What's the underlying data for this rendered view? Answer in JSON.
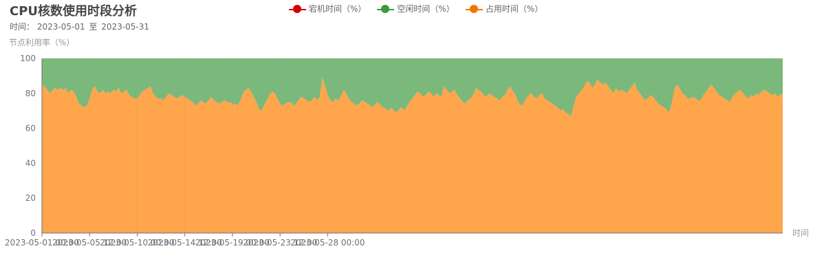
{
  "header": {
    "title": "CPU核数使用时段分析",
    "time_label": "时间：",
    "start": "2023-05-01",
    "to": "至",
    "end": "2023-05-31"
  },
  "legend": [
    {
      "name": "宕机时间（%）",
      "color": "#d40000"
    },
    {
      "name": "空闲时间（%）",
      "color": "#3c9a3c"
    },
    {
      "name": "占用时间（%）",
      "color": "#f07800"
    }
  ],
  "chart_data": {
    "type": "area",
    "stacked": true,
    "ylabel": "节点利用率（%）",
    "xlabel": "时间",
    "ylim": [
      0,
      100
    ],
    "yticks": [
      0,
      20,
      40,
      60,
      80,
      100
    ],
    "xtick_labels": [
      "2023-05-01 00:00",
      "2023-05-05 12:00",
      "2023-05-10 00:00",
      "2023-05-14 12:00",
      "2023-05-19 00:00",
      "2023-05-23 12:00",
      "2023-05-28 00:00"
    ],
    "x_start": "2023-05-01 00:00",
    "x_step_hours": 6,
    "series_colors": {
      "down": "#d40000",
      "idle": "#7bb87b",
      "used": "#ffa54c"
    },
    "series": [
      {
        "name": "占用时间（%）",
        "values": [
          85,
          84,
          82,
          80,
          82,
          83,
          82,
          83,
          82,
          83,
          80,
          82,
          81,
          78,
          74,
          73,
          72,
          73,
          77,
          82,
          84,
          81,
          80,
          82,
          80,
          81,
          80,
          82,
          81,
          83,
          80,
          81,
          82,
          79,
          78,
          77,
          77,
          79,
          81,
          82,
          83,
          84,
          80,
          78,
          77,
          77,
          76,
          78,
          80,
          79,
          78,
          77,
          78,
          79,
          78,
          77,
          76,
          75,
          73,
          74,
          76,
          75,
          74,
          76,
          78,
          76,
          75,
          74,
          75,
          76,
          75,
          75,
          74,
          74,
          73,
          76,
          80,
          82,
          83,
          81,
          78,
          75,
          71,
          70,
          73,
          76,
          79,
          81,
          80,
          77,
          74,
          73,
          74,
          75,
          75,
          73,
          74,
          76,
          78,
          77,
          76,
          75,
          76,
          78,
          76,
          78,
          89,
          84,
          79,
          76,
          75,
          77,
          76,
          78,
          82,
          80,
          77,
          75,
          74,
          73,
          74,
          76,
          75,
          74,
          73,
          72,
          74,
          75,
          73,
          72,
          71,
          70,
          72,
          70,
          69,
          71,
          72,
          70,
          73,
          75,
          77,
          79,
          81,
          80,
          78,
          79,
          81,
          80,
          78,
          80,
          79,
          78,
          84,
          82,
          80,
          81,
          82,
          79,
          77,
          75,
          74,
          76,
          77,
          79,
          83,
          82,
          81,
          79,
          78,
          80,
          79,
          78,
          77,
          76,
          78,
          79,
          82,
          84,
          81,
          79,
          75,
          73,
          74,
          77,
          79,
          80,
          78,
          77,
          79,
          80,
          77,
          76,
          75,
          74,
          73,
          72,
          70,
          71,
          69,
          68,
          67,
          73,
          78,
          80,
          82,
          84,
          87,
          86,
          83,
          85,
          88,
          86,
          85,
          86,
          84,
          82,
          80,
          83,
          81,
          82,
          81,
          80,
          82,
          84,
          86,
          82,
          80,
          78,
          76,
          77,
          79,
          78,
          76,
          74,
          73,
          72,
          71,
          69,
          74,
          82,
          85,
          83,
          80,
          79,
          77,
          77,
          78,
          77,
          76,
          76,
          79,
          81,
          83,
          85,
          83,
          81,
          79,
          78,
          77,
          76,
          75,
          78,
          80,
          81,
          82,
          80,
          78,
          77,
          79,
          78,
          80,
          79,
          81,
          82,
          81,
          80,
          79,
          80,
          78,
          79,
          80
        ]
      },
      {
        "name": "空闲时间（%）",
        "values": [
          15,
          16,
          18,
          20,
          18,
          17,
          18,
          17,
          18,
          17,
          20,
          18,
          19,
          22,
          26,
          27,
          28,
          27,
          23,
          18,
          16,
          19,
          20,
          18,
          20,
          19,
          20,
          18,
          19,
          17,
          20,
          19,
          18,
          21,
          22,
          23,
          23,
          21,
          19,
          18,
          17,
          16,
          20,
          22,
          23,
          23,
          24,
          22,
          20,
          21,
          22,
          23,
          22,
          21,
          22,
          23,
          24,
          25,
          27,
          26,
          24,
          25,
          26,
          24,
          22,
          24,
          25,
          26,
          25,
          24,
          25,
          25,
          26,
          26,
          27,
          24,
          20,
          18,
          17,
          19,
          22,
          25,
          29,
          30,
          27,
          24,
          21,
          19,
          20,
          23,
          26,
          27,
          26,
          25,
          25,
          27,
          26,
          24,
          22,
          23,
          24,
          25,
          24,
          22,
          24,
          22,
          11,
          16,
          21,
          24,
          25,
          23,
          24,
          22,
          18,
          20,
          23,
          25,
          26,
          27,
          26,
          24,
          25,
          26,
          27,
          28,
          26,
          25,
          27,
          28,
          29,
          30,
          28,
          30,
          31,
          29,
          28,
          30,
          27,
          25,
          23,
          21,
          19,
          20,
          22,
          21,
          19,
          20,
          22,
          20,
          21,
          22,
          16,
          18,
          20,
          19,
          18,
          21,
          23,
          25,
          26,
          24,
          23,
          21,
          17,
          18,
          19,
          21,
          22,
          20,
          21,
          22,
          23,
          24,
          22,
          21,
          18,
          16,
          19,
          21,
          25,
          27,
          26,
          23,
          21,
          20,
          22,
          23,
          21,
          20,
          23,
          24,
          25,
          26,
          27,
          28,
          30,
          29,
          31,
          32,
          33,
          27,
          22,
          20,
          18,
          16,
          13,
          14,
          17,
          15,
          12,
          14,
          15,
          14,
          16,
          18,
          20,
          17,
          19,
          18,
          19,
          20,
          18,
          16,
          14,
          18,
          20,
          22,
          24,
          23,
          21,
          22,
          24,
          26,
          27,
          28,
          29,
          31,
          26,
          18,
          15,
          17,
          20,
          21,
          23,
          23,
          22,
          23,
          24,
          24,
          21,
          19,
          17,
          15,
          17,
          19,
          21,
          22,
          23,
          24,
          25,
          22,
          20,
          19,
          18,
          20,
          22,
          23,
          21,
          22,
          20,
          21,
          19,
          18,
          19,
          20,
          21,
          20,
          22,
          21,
          20
        ]
      },
      {
        "name": "宕机时间（%）",
        "values": [
          0,
          0,
          0,
          0,
          0,
          0,
          0,
          0,
          0,
          0,
          0,
          0,
          0,
          0,
          0,
          0,
          0,
          0,
          0,
          0,
          0,
          0,
          0,
          0,
          0,
          0,
          0,
          0,
          0,
          0,
          0,
          0,
          0,
          0,
          0,
          0,
          0,
          0,
          0,
          0,
          0,
          0,
          0,
          0,
          0,
          0,
          0,
          0,
          0,
          0,
          0,
          0,
          0,
          0,
          0,
          0,
          0,
          0,
          0,
          0,
          0,
          0,
          0,
          0,
          0,
          0,
          0,
          0,
          0,
          0,
          0,
          0,
          0,
          0,
          0,
          0,
          0,
          0,
          0,
          0,
          0,
          0,
          0,
          0,
          0,
          0,
          0,
          0,
          0,
          0,
          0,
          0,
          0,
          0,
          0,
          0,
          0,
          0,
          0,
          0,
          0,
          0,
          0,
          0,
          0,
          0,
          0,
          0,
          0,
          0,
          0,
          0,
          0,
          0,
          0,
          0,
          0,
          0,
          0,
          0,
          0,
          0,
          0,
          0,
          0,
          0,
          0,
          0,
          0,
          0,
          0,
          0,
          0,
          0,
          0,
          0,
          0,
          0,
          0,
          0,
          0,
          0,
          0,
          0,
          0,
          0,
          0,
          0,
          0,
          0,
          0,
          0,
          0,
          0,
          0,
          0,
          0,
          0,
          0,
          0,
          0,
          0,
          0,
          0,
          0,
          0,
          0,
          0,
          0,
          0,
          0,
          0,
          0,
          0,
          0,
          0,
          0,
          0,
          0,
          0,
          0,
          0,
          0,
          0,
          0,
          0,
          0,
          0,
          0,
          0,
          0,
          0,
          0,
          0,
          0,
          0,
          0,
          0,
          0,
          0,
          0,
          0,
          0,
          0,
          0,
          0,
          0,
          0,
          0,
          0,
          0,
          0,
          0,
          0,
          0,
          0,
          0,
          0,
          0,
          0,
          0,
          0,
          0,
          0,
          0,
          0,
          0,
          0,
          0,
          0,
          0,
          0,
          0,
          0,
          0,
          0,
          0,
          0,
          0,
          0,
          0,
          0,
          0,
          0,
          0,
          0,
          0,
          0,
          0,
          0,
          0,
          0,
          0,
          0,
          0,
          0,
          0,
          0,
          0,
          0,
          0,
          0,
          0,
          0,
          0,
          0,
          0,
          0,
          0,
          0,
          0,
          0,
          0,
          0,
          0,
          0,
          0,
          0,
          0,
          0,
          0,
          0,
          0,
          0,
          0,
          0,
          0,
          0,
          0,
          0,
          0,
          0,
          0,
          0,
          0,
          0,
          0,
          0,
          0,
          0
        ]
      }
    ]
  }
}
